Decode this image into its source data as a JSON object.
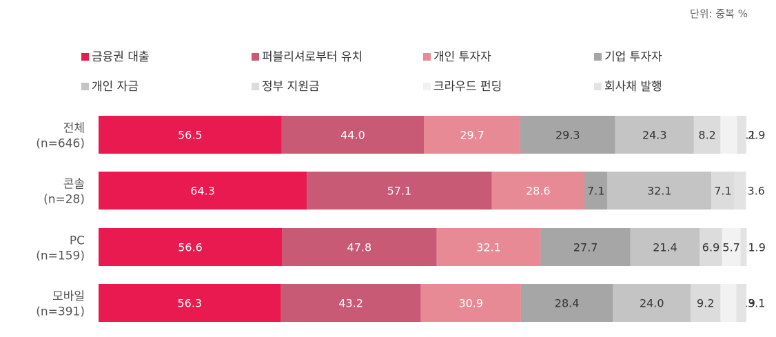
{
  "chart_data": {
    "type": "bar",
    "orientation": "horizontal",
    "stacked": true,
    "unit_note": "단위: 중복 %",
    "legend_position": "top",
    "categories": [
      [
        "전체",
        "(n=646)"
      ],
      [
        "콘솔",
        "(n=28)"
      ],
      [
        "PC",
        "(n=159)"
      ],
      [
        "모바일",
        "(n=391)"
      ]
    ],
    "series": [
      {
        "name": "금융권 대출",
        "color": "#e81a4f",
        "label_color": "#ffffff",
        "values": [
          56.5,
          64.3,
          56.6,
          56.3
        ]
      },
      {
        "name": "퍼블리셔로부터 유치",
        "color": "#c95a75",
        "label_color": "#ffffff",
        "values": [
          44.0,
          57.1,
          47.8,
          43.2
        ]
      },
      {
        "name": "개인 투자자",
        "color": "#e88a96",
        "label_color": "#ffffff",
        "values": [
          29.7,
          28.6,
          32.1,
          30.9
        ]
      },
      {
        "name": "기업 투자자",
        "color": "#a6a6a6",
        "label_color": "#333333",
        "values": [
          29.3,
          7.1,
          27.7,
          28.4
        ]
      },
      {
        "name": "개인 자금",
        "color": "#c4c4c4",
        "label_color": "#333333",
        "values": [
          24.3,
          32.1,
          21.4,
          24.0
        ]
      },
      {
        "name": "정부 지원금",
        "color": "#dcdcdc",
        "label_color": "#333333",
        "values": [
          8.2,
          7.1,
          6.9,
          9.2
        ]
      },
      {
        "name": "크라우드 펀딩",
        "color": "#f2f2f2",
        "label_color": "#333333",
        "values": [
          5.1,
          0,
          5.7,
          4.9
        ]
      },
      {
        "name": "회사채 발행",
        "color": "#e3e3e3",
        "label_color": "#333333",
        "values": [
          2.9,
          3.6,
          1.9,
          3.1
        ]
      }
    ],
    "grid": false
  }
}
